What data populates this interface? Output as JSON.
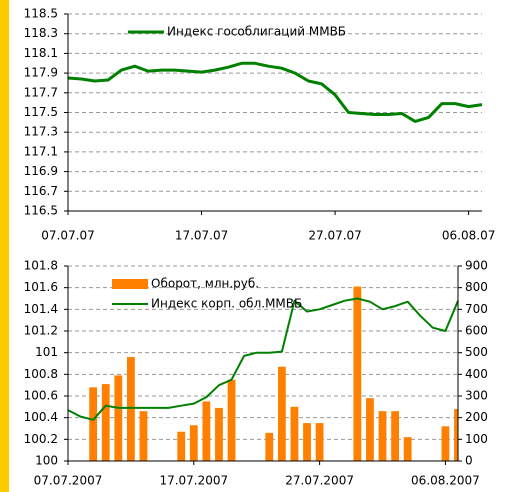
{
  "chart_data": [
    {
      "type": "line",
      "x": [
        "07.07.07",
        "08.07.07",
        "09.07.07",
        "10.07.07",
        "11.07.07",
        "12.07.07",
        "13.07.07",
        "14.07.07",
        "15.07.07",
        "16.07.07",
        "17.07.07",
        "18.07.07",
        "19.07.07",
        "20.07.07",
        "21.07.07",
        "22.07.07",
        "23.07.07",
        "24.07.07",
        "25.07.07",
        "26.07.07",
        "27.07.07",
        "28.07.07",
        "29.07.07",
        "30.07.07",
        "31.07.07",
        "01.08.07",
        "02.08.07",
        "03.08.07",
        "04.08.07",
        "05.08.07",
        "06.08.07",
        "07.08.07"
      ],
      "xticks": [
        "07.07.07",
        "17.07.07",
        "27.07.07",
        "06.08.07"
      ],
      "series": [
        {
          "name": "Индекс гособлигаций ММВБ",
          "color": "#008000",
          "values": [
            117.85,
            117.84,
            117.82,
            117.83,
            117.93,
            117.97,
            117.92,
            117.93,
            117.93,
            117.92,
            117.91,
            117.93,
            117.96,
            118.0,
            118.0,
            117.97,
            117.95,
            117.9,
            117.82,
            117.79,
            117.68,
            117.5,
            117.49,
            117.48,
            117.48,
            117.49,
            117.41,
            117.45,
            117.59,
            117.59,
            117.56,
            117.58
          ]
        }
      ],
      "ylim": [
        116.5,
        118.5
      ],
      "yticks": [
        116.5,
        116.7,
        116.9,
        117.1,
        117.3,
        117.5,
        117.7,
        117.9,
        118.1,
        118.3,
        118.5
      ],
      "grid": true
    },
    {
      "type": "combo",
      "x": [
        "07.07.2007",
        "08.07.2007",
        "09.07.2007",
        "10.07.2007",
        "11.07.2007",
        "12.07.2007",
        "13.07.2007",
        "14.07.2007",
        "15.07.2007",
        "16.07.2007",
        "17.07.2007",
        "18.07.2007",
        "19.07.2007",
        "20.07.2007",
        "21.07.2007",
        "22.07.2007",
        "23.07.2007",
        "24.07.2007",
        "25.07.2007",
        "26.07.2007",
        "27.07.2007",
        "28.07.2007",
        "29.07.2007",
        "30.07.2007",
        "31.07.2007",
        "01.08.2007",
        "02.08.2007",
        "03.08.2007",
        "04.08.2007",
        "05.08.2007",
        "06.08.2007",
        "07.08.2007"
      ],
      "xticks": [
        "07.07.2007",
        "17.07.2007",
        "27.07.2007",
        "06.08.2007"
      ],
      "series": [
        {
          "name": "Оборот, млн.руб.",
          "type": "bar",
          "axis": "y2",
          "color": "#ff8000",
          "values": [
            null,
            null,
            340,
            355,
            395,
            480,
            230,
            null,
            null,
            135,
            165,
            275,
            245,
            375,
            null,
            null,
            130,
            435,
            250,
            175,
            175,
            null,
            null,
            805,
            290,
            230,
            230,
            110,
            null,
            null,
            160,
            240
          ]
        },
        {
          "name": "Индекс корп. обл.ММВБ",
          "type": "line",
          "color": "#008000",
          "values": [
            100.47,
            100.41,
            100.38,
            100.51,
            100.49,
            100.49,
            100.49,
            100.49,
            100.49,
            100.51,
            100.53,
            100.59,
            100.7,
            100.75,
            100.97,
            101.0,
            101.0,
            101.01,
            101.48,
            101.38,
            101.4,
            101.44,
            101.48,
            101.5,
            101.47,
            101.4,
            101.43,
            101.47,
            101.34,
            101.23,
            101.2,
            101.48
          ]
        }
      ],
      "ylim": [
        100,
        101.8
      ],
      "yticks": [
        100,
        100.2,
        100.4,
        100.6,
        100.8,
        101,
        101.2,
        101.4,
        101.6,
        101.8
      ],
      "y2lim": [
        0,
        900
      ],
      "y2ticks": [
        0,
        100,
        200,
        300,
        400,
        500,
        600,
        700,
        800,
        900
      ],
      "grid": true
    }
  ]
}
